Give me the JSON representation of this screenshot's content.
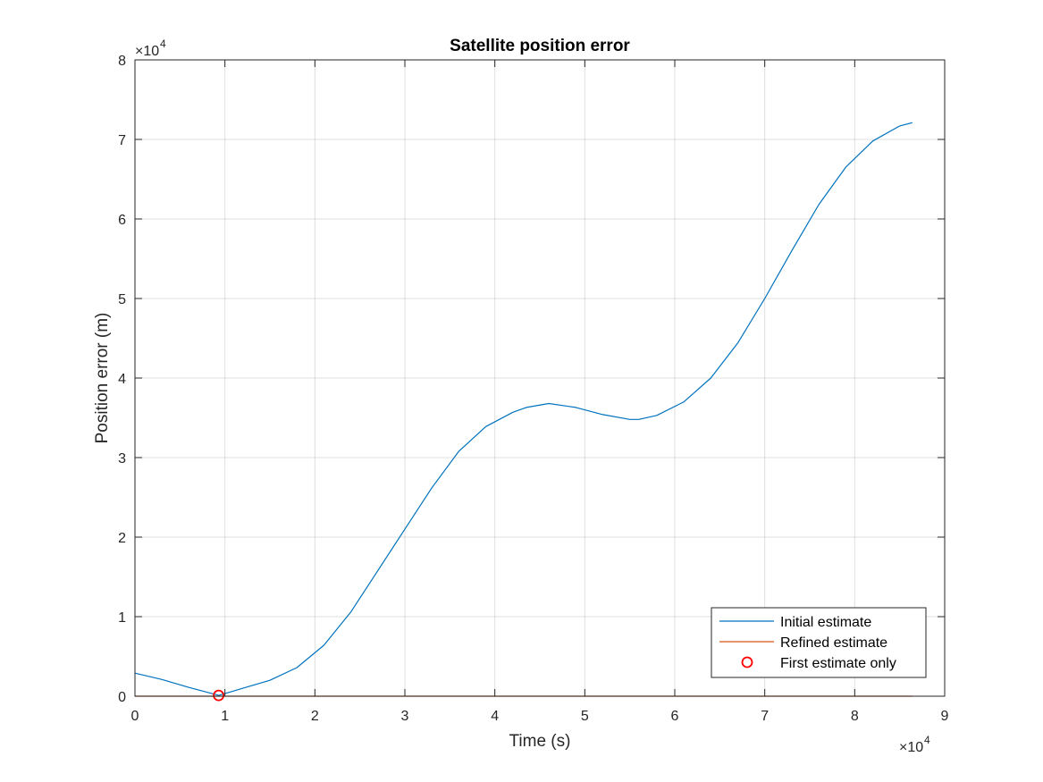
{
  "chart_data": {
    "type": "line",
    "title": "Satellite position error",
    "xlabel": "Time (s)",
    "ylabel": "Position error (m)",
    "x_exponent_label": "×10",
    "x_exponent_power": "4",
    "y_exponent_label": "×10",
    "y_exponent_power": "4",
    "xlim": [
      0,
      90000
    ],
    "ylim": [
      0,
      80000
    ],
    "xticks": [
      0,
      10000,
      20000,
      30000,
      40000,
      50000,
      60000,
      70000,
      80000,
      90000
    ],
    "xtick_labels": [
      "0",
      "1",
      "2",
      "3",
      "4",
      "5",
      "6",
      "7",
      "8",
      "9"
    ],
    "yticks": [
      0,
      10000,
      20000,
      30000,
      40000,
      50000,
      60000,
      70000,
      80000
    ],
    "ytick_labels": [
      "0",
      "1",
      "2",
      "3",
      "4",
      "5",
      "6",
      "7",
      "8"
    ],
    "grid": true,
    "legend_position": "bottom-right",
    "series": [
      {
        "name": "Initial estimate",
        "color": "#0072BD",
        "marker": "none",
        "x": [
          0,
          3000,
          6000,
          9000,
          9300,
          12000,
          15000,
          18000,
          21000,
          24000,
          27000,
          30000,
          33000,
          36000,
          39000,
          42000,
          43500,
          46000,
          49000,
          52000,
          55000,
          56000,
          58000,
          61000,
          64000,
          67000,
          70000,
          73000,
          76000,
          79000,
          82000,
          85000,
          86400
        ],
        "y": [
          2900,
          2100,
          1100,
          200,
          100,
          1000,
          2000,
          3600,
          6400,
          10600,
          15800,
          21000,
          26200,
          30800,
          33900,
          35700,
          36300,
          36800,
          36300,
          35400,
          34800,
          34800,
          35300,
          37000,
          40000,
          44400,
          50000,
          56000,
          61800,
          66500,
          69800,
          71700,
          72100
        ]
      },
      {
        "name": "Refined estimate",
        "color": "#D95319",
        "marker": "none",
        "x": [
          0,
          10000,
          20000,
          30000,
          40000,
          50000,
          60000,
          70000,
          80000,
          86400
        ],
        "y": [
          0,
          0,
          0,
          0,
          0,
          0,
          0,
          0,
          0,
          0
        ]
      },
      {
        "name": "First estimate only",
        "color": "#FF0000",
        "marker": "circle",
        "x": [
          9300
        ],
        "y": [
          100
        ]
      }
    ]
  }
}
